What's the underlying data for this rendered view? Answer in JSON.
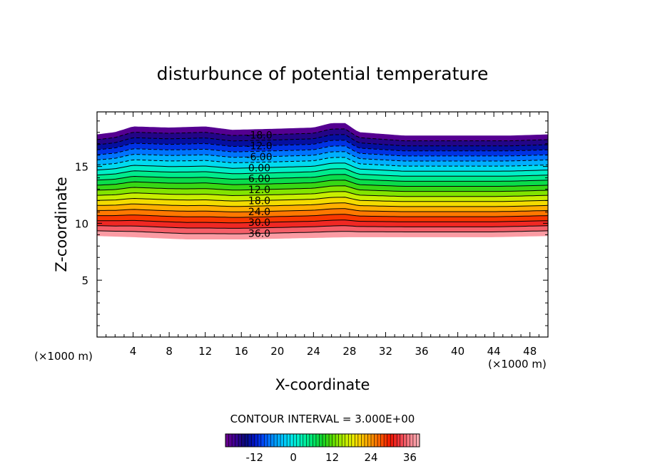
{
  "chart_data": {
    "type": "contour",
    "title": "disturbunce of potential temperature",
    "xlabel": "X-coordinate",
    "ylabel": "Z-coordinate",
    "x_unit": "(×1000 m)",
    "z_unit": "(×1000 m)",
    "xlim": [
      0,
      50
    ],
    "ylim": [
      0,
      19.8
    ],
    "x_ticks": [
      4,
      8,
      12,
      16,
      20,
      24,
      28,
      32,
      36,
      40,
      44,
      48
    ],
    "x_tick_labels": [
      "4",
      "8",
      "12",
      "16",
      "20",
      "24",
      "28",
      "32",
      "36",
      "40",
      "44",
      "48"
    ],
    "y_ticks": [
      5,
      10,
      15
    ],
    "y_tick_labels": [
      "5",
      "10",
      "15"
    ],
    "contour_interval_text": "CONTOUR INTERVAL = 3.000E+00",
    "contour_interval": 3,
    "value_range": [
      -21,
      39
    ],
    "contour_labels": [
      {
        "text": "-18.0",
        "value": -18
      },
      {
        "text": "-12.0",
        "value": -12
      },
      {
        "text": "-6.00",
        "value": -6
      },
      {
        "text": "0.00",
        "value": 0
      },
      {
        "text": "6.00",
        "value": 6
      },
      {
        "text": "12.0",
        "value": 12
      },
      {
        "text": "18.0",
        "value": 18
      },
      {
        "text": "24.0",
        "value": 24
      },
      {
        "text": "30.0",
        "value": 30
      },
      {
        "text": "36.0",
        "value": 36
      }
    ],
    "field": {
      "bottom_edge_z": {
        "x": [
          0,
          4,
          10,
          16,
          22,
          28,
          36,
          44,
          50
        ],
        "z": [
          8.9,
          8.8,
          8.6,
          8.6,
          8.7,
          8.8,
          8.8,
          8.8,
          8.9
        ]
      },
      "top_edge_z": {
        "x": [
          0,
          2,
          4,
          8,
          12,
          15,
          20,
          24,
          26,
          27.5,
          29,
          34,
          40,
          46,
          50
        ],
        "z": [
          17.8,
          18.0,
          18.5,
          18.4,
          18.5,
          18.2,
          18.3,
          18.4,
          18.8,
          18.8,
          18.0,
          17.7,
          17.7,
          17.7,
          17.8
        ]
      }
    },
    "colorbar": {
      "tick_values": [
        -12,
        0,
        12,
        24,
        36
      ],
      "tick_labels": [
        "-12",
        "0",
        "12",
        "24",
        "36"
      ]
    }
  }
}
